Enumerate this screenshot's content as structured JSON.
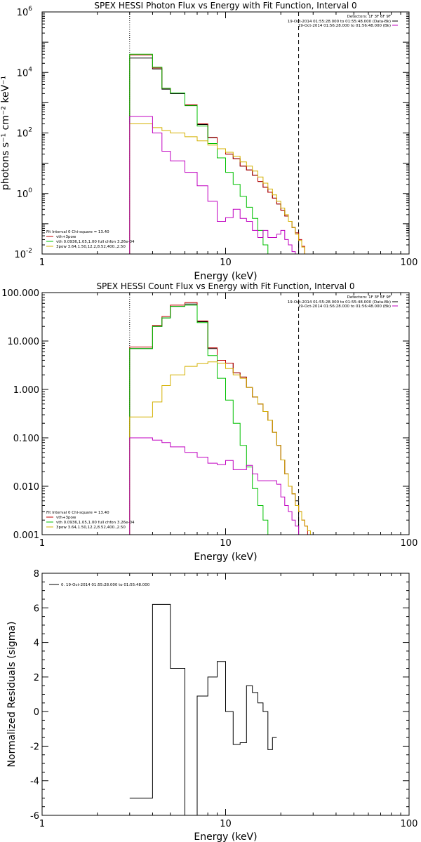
{
  "chart_data": [
    {
      "type": "line",
      "title": "SPEX HESSI Photon Flux vs Energy with Fit Function, Interval 0",
      "xlabel": "Energy (keV)",
      "ylabel": "photons s⁻¹ cm⁻² keV⁻¹",
      "xscale": "log",
      "yscale": "log",
      "xlim": [
        1,
        100
      ],
      "ylim": [
        0.01,
        1000000
      ],
      "x_ticks": [
        {
          "v": 1,
          "label": "1"
        },
        {
          "v": 10,
          "label": "10"
        },
        {
          "v": 100,
          "label": "100"
        }
      ],
      "y_ticks": [
        {
          "v": 0.01,
          "label": "10",
          "sup": "-2"
        },
        {
          "v": 1,
          "label": "10",
          "sup": "0"
        },
        {
          "v": 100,
          "label": "10",
          "sup": "2"
        },
        {
          "v": 10000,
          "label": "10",
          "sup": "4"
        },
        {
          "v": 1000000,
          "label": "10",
          "sup": "6"
        }
      ],
      "vlines": [
        {
          "x": 3.0,
          "style": "dotted"
        },
        {
          "x": 25.0,
          "style": "dashed"
        }
      ],
      "legend_right": {
        "header": "Detectors: 1F 3F 6F 9F",
        "entries": [
          {
            "text": "19-Oct-2014 01:55:28.000 to 01:55:48.000 (Data-Bk)",
            "color": "#000000"
          },
          {
            "text": "19-Oct-2014 01:56:28.000 to 01:56:48.000 (Bk)",
            "color": "#c000c0"
          }
        ]
      },
      "legend_left": {
        "header": "Fit Interval 0   Chi-square = 13.40",
        "entries": [
          {
            "text": "vth+3pow",
            "color": "#c00000"
          },
          {
            "text": "vth 0.0936,1.05,1.00  full chfon 3.26e-04",
            "color": "#00c000"
          },
          {
            "text": "3pow 3.64,1.50,12.2,8.52,400.,2.50",
            "color": "#d4b000"
          }
        ]
      },
      "x_edges": [
        3.0,
        3.5,
        4.0,
        4.5,
        5.0,
        6.0,
        7.0,
        8.0,
        9.0,
        10.0,
        11.0,
        12.0,
        13.0,
        14.0,
        15.0,
        16.0,
        17.0,
        18.0,
        19.0,
        20.0,
        21.0,
        22.0,
        23.0,
        24.0,
        25.0,
        26.0,
        27.0,
        28.0,
        29.0,
        30.0
      ],
      "series": [
        {
          "name": "Data-Bk",
          "color": "#000000",
          "values": [
            30000,
            30000,
            13000,
            2800,
            2000,
            820,
            190,
            70,
            30,
            20,
            14,
            8,
            6,
            4,
            2.5,
            1.6,
            1.1,
            0.7,
            0.45,
            0.28,
            0.18,
            0.12,
            0.075,
            0.05
          ]
        },
        {
          "name": "vth+3pow",
          "color": "#c00000",
          "values": [
            38000,
            38000,
            14000,
            3000,
            2100,
            850,
            200,
            72,
            30,
            20,
            14,
            8,
            6,
            4,
            2.5,
            1.6,
            1.1,
            0.7,
            0.45,
            0.28,
            0.18,
            0.12,
            0.075,
            0.05,
            0.03,
            0.018
          ]
        },
        {
          "name": "vth",
          "color": "#00c000",
          "values": [
            40000,
            40000,
            15000,
            3000,
            2100,
            800,
            170,
            45,
            15,
            5,
            2,
            0.8,
            0.35,
            0.15,
            0.06,
            0.02,
            0.009
          ]
        },
        {
          "name": "3pow",
          "color": "#d4b000",
          "values": [
            200,
            200,
            150,
            120,
            100,
            75,
            55,
            40,
            30,
            23,
            17,
            11,
            8,
            5.5,
            3.5,
            2.2,
            1.4,
            0.9,
            0.55,
            0.33,
            0.2,
            0.12,
            0.075,
            0.045,
            0.028,
            0.017,
            0.01,
            0.006
          ]
        },
        {
          "name": "Bk",
          "color": "#c000c0",
          "values": [
            350,
            350,
            100,
            25,
            12,
            5,
            1.8,
            0.55,
            0.12,
            0.16,
            0.3,
            0.15,
            0.12,
            0.06,
            0.035,
            0.06,
            0.035,
            0.035,
            0.045,
            0.06,
            0.03,
            0.02,
            0.012,
            0.006
          ]
        }
      ]
    },
    {
      "type": "line",
      "title": "SPEX HESSI Count Flux vs Energy with Fit Function, Interval 0",
      "xlabel": "Energy (keV)",
      "ylabel": "",
      "xscale": "log",
      "yscale": "log",
      "xlim": [
        1,
        100
      ],
      "ylim": [
        0.001,
        100
      ],
      "x_ticks": [
        {
          "v": 1,
          "label": "1"
        },
        {
          "v": 10,
          "label": "10"
        },
        {
          "v": 100,
          "label": "100"
        }
      ],
      "y_ticks": [
        {
          "v": 0.001,
          "label": "0.001"
        },
        {
          "v": 0.01,
          "label": "0.010"
        },
        {
          "v": 0.1,
          "label": "0.100"
        },
        {
          "v": 1,
          "label": "1.000"
        },
        {
          "v": 10,
          "label": "10.000"
        },
        {
          "v": 100,
          "label": "100.000"
        }
      ],
      "vlines": [
        {
          "x": 3.0,
          "style": "dotted"
        },
        {
          "x": 25.0,
          "style": "dashed"
        }
      ],
      "legend_right": {
        "header": "Detectors: 1F 3F 6F 9F",
        "entries": [
          {
            "text": "19-Oct-2014 01:55:28.000 to 01:55:48.000 (Data-Bk)",
            "color": "#000000"
          },
          {
            "text": "19-Oct-2014 01:56:28.000 to 01:56:48.000 (Bk)",
            "color": "#c000c0"
          }
        ]
      },
      "legend_left": {
        "header": "Fit Interval 0   Chi-square = 13.40",
        "entries": [
          {
            "text": "vth+3pow",
            "color": "#c00000"
          },
          {
            "text": "vth 0.0936,1.05,1.00  full chfon 3.26e-04",
            "color": "#00c000"
          },
          {
            "text": "3pow 3.64,1.50,12.2,8.52,400.,2.50",
            "color": "#d4b000"
          }
        ]
      },
      "x_edges": [
        3.0,
        3.5,
        4.0,
        4.5,
        5.0,
        6.0,
        7.0,
        8.0,
        9.0,
        10.0,
        11.0,
        12.0,
        13.0,
        14.0,
        15.0,
        16.0,
        17.0,
        18.0,
        19.0,
        20.0,
        21.0,
        22.0,
        23.0,
        24.0,
        25.0,
        26.0,
        27.0,
        28.0,
        29.0,
        30.0
      ],
      "series": [
        {
          "name": "Data-Bk",
          "color": "#000000",
          "values": [
            7,
            7,
            20,
            30,
            52,
            58,
            25,
            7,
            4,
            3.5,
            2.2,
            1.8,
            1.1,
            0.7,
            0.5,
            0.35,
            0.23,
            0.13,
            0.07,
            0.035,
            0.018,
            0.01,
            0.007,
            0.005
          ]
        },
        {
          "name": "vth+3pow",
          "color": "#c00000",
          "values": [
            7.5,
            7.5,
            21,
            32,
            55,
            62,
            26,
            7.2,
            4,
            3.5,
            2.2,
            1.8,
            1.1,
            0.7,
            0.5,
            0.35,
            0.23,
            0.13,
            0.07,
            0.035,
            0.018,
            0.01,
            0.007,
            0.004,
            0.003,
            0.002,
            0.0015
          ]
        },
        {
          "name": "vth",
          "color": "#00c000",
          "values": [
            7,
            7,
            20,
            30,
            52,
            55,
            24,
            5,
            1.7,
            0.6,
            0.2,
            0.07,
            0.025,
            0.009,
            0.004,
            0.002
          ]
        },
        {
          "name": "3pow",
          "color": "#d4b000",
          "values": [
            0.27,
            0.27,
            0.55,
            1.2,
            2,
            3,
            3.4,
            3.7,
            3.5,
            2.7,
            2,
            1.7,
            1.1,
            0.7,
            0.5,
            0.35,
            0.23,
            0.13,
            0.07,
            0.035,
            0.018,
            0.01,
            0.007,
            0.004,
            0.003,
            0.002,
            0.0015,
            0.0012,
            0.001
          ]
        },
        {
          "name": "Bk",
          "color": "#c000c0",
          "values": [
            0.1,
            0.1,
            0.09,
            0.08,
            0.065,
            0.05,
            0.04,
            0.03,
            0.028,
            0.034,
            0.022,
            0.022,
            0.027,
            0.018,
            0.013,
            0.013,
            0.013,
            0.013,
            0.011,
            0.006,
            0.004,
            0.003,
            0.002,
            0.0015
          ]
        }
      ]
    },
    {
      "type": "line",
      "title": "",
      "xlabel": "Energy (keV)",
      "ylabel": "Normalized Residuals (sigma)",
      "xscale": "log",
      "yscale": "linear",
      "xlim": [
        1,
        100
      ],
      "ylim": [
        -6,
        8
      ],
      "x_ticks": [
        {
          "v": 1,
          "label": "1"
        },
        {
          "v": 10,
          "label": "10"
        },
        {
          "v": 100,
          "label": "100"
        }
      ],
      "y_ticks": [
        {
          "v": -6,
          "label": "-6"
        },
        {
          "v": -4,
          "label": "-4"
        },
        {
          "v": -2,
          "label": "-2"
        },
        {
          "v": 0,
          "label": "0"
        },
        {
          "v": 2,
          "label": "2"
        },
        {
          "v": 4,
          "label": "4"
        },
        {
          "v": 6,
          "label": "6"
        },
        {
          "v": 8,
          "label": "8"
        }
      ],
      "legend_left_top": {
        "entries": [
          {
            "text": "0. 19-Oct-2014 01:55:28.000 to 01:55:48.000",
            "color": "#000000"
          }
        ]
      },
      "x_edges": [
        3.0,
        3.5,
        4.0,
        4.5,
        5.0,
        6.0,
        7.0,
        8.0,
        9.0,
        10.0,
        11.0,
        12.0,
        13.0,
        14.0,
        15.0,
        16.0,
        17.0,
        18.0,
        19.0,
        20.0,
        21.0,
        22.0,
        23.0,
        24.0,
        25.0
      ],
      "series": [
        {
          "name": "0. 19-Oct-2014 01:55:28.000 to 01:55:48.000",
          "color": "#000000",
          "values": [
            -5,
            -5,
            6.2,
            6.2,
            2.5,
            -6,
            0.9,
            2,
            2.9,
            0,
            -1.9,
            -1.8,
            1.5,
            1.1,
            0.5,
            0,
            -2.2,
            -1.5
          ]
        }
      ]
    }
  ]
}
